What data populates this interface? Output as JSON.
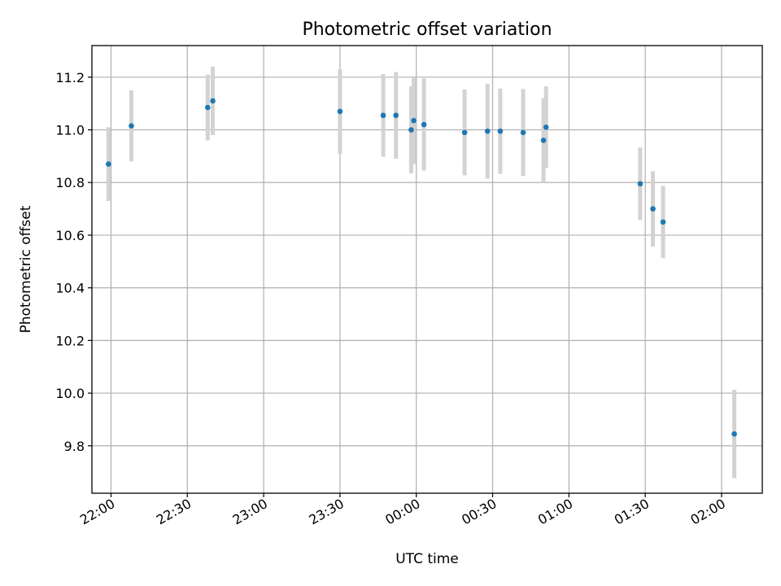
{
  "chart_data": {
    "type": "scatter",
    "title": "Photometric offset variation",
    "xlabel": "UTC time",
    "ylabel": "Photometric offset",
    "grid": true,
    "x_ticks": [
      "22:00",
      "22:30",
      "23:00",
      "23:30",
      "00:00",
      "00:30",
      "01:00",
      "01:30",
      "02:00"
    ],
    "y_ticks": [
      "9.8",
      "10.0",
      "10.2",
      "10.4",
      "10.6",
      "10.8",
      "11.0",
      "11.2"
    ],
    "xlim": [
      "21:52:30",
      "02:16:00"
    ],
    "ylim": [
      9.62,
      11.32
    ],
    "colors": {
      "point": "#1f77b4",
      "errorbar": "#d3d3d3"
    },
    "points": [
      {
        "x": "21:59",
        "y": 10.87,
        "yerr": 0.14
      },
      {
        "x": "22:08",
        "y": 11.015,
        "yerr": 0.135
      },
      {
        "x": "22:38",
        "y": 11.085,
        "yerr": 0.125
      },
      {
        "x": "22:40",
        "y": 11.11,
        "yerr": 0.13
      },
      {
        "x": "23:30",
        "y": 11.07,
        "yerr": 0.16
      },
      {
        "x": "23:47",
        "y": 11.055,
        "yerr": 0.157
      },
      {
        "x": "23:52",
        "y": 11.055,
        "yerr": 0.165
      },
      {
        "x": "23:58",
        "y": 11.0,
        "yerr": 0.165
      },
      {
        "x": "23:59",
        "y": 11.035,
        "yerr": 0.165
      },
      {
        "x": "00:03",
        "y": 11.02,
        "yerr": 0.175
      },
      {
        "x": "00:19",
        "y": 10.99,
        "yerr": 0.163
      },
      {
        "x": "00:28",
        "y": 10.995,
        "yerr": 0.18
      },
      {
        "x": "00:33",
        "y": 10.995,
        "yerr": 0.162
      },
      {
        "x": "00:42",
        "y": 10.99,
        "yerr": 0.165
      },
      {
        "x": "00:50",
        "y": 10.96,
        "yerr": 0.16
      },
      {
        "x": "00:51",
        "y": 11.01,
        "yerr": 0.155
      },
      {
        "x": "01:28",
        "y": 10.795,
        "yerr": 0.138
      },
      {
        "x": "01:33",
        "y": 10.7,
        "yerr": 0.143
      },
      {
        "x": "01:37",
        "y": 10.65,
        "yerr": 0.137
      },
      {
        "x": "02:05",
        "y": 9.845,
        "yerr": 0.168
      }
    ]
  }
}
